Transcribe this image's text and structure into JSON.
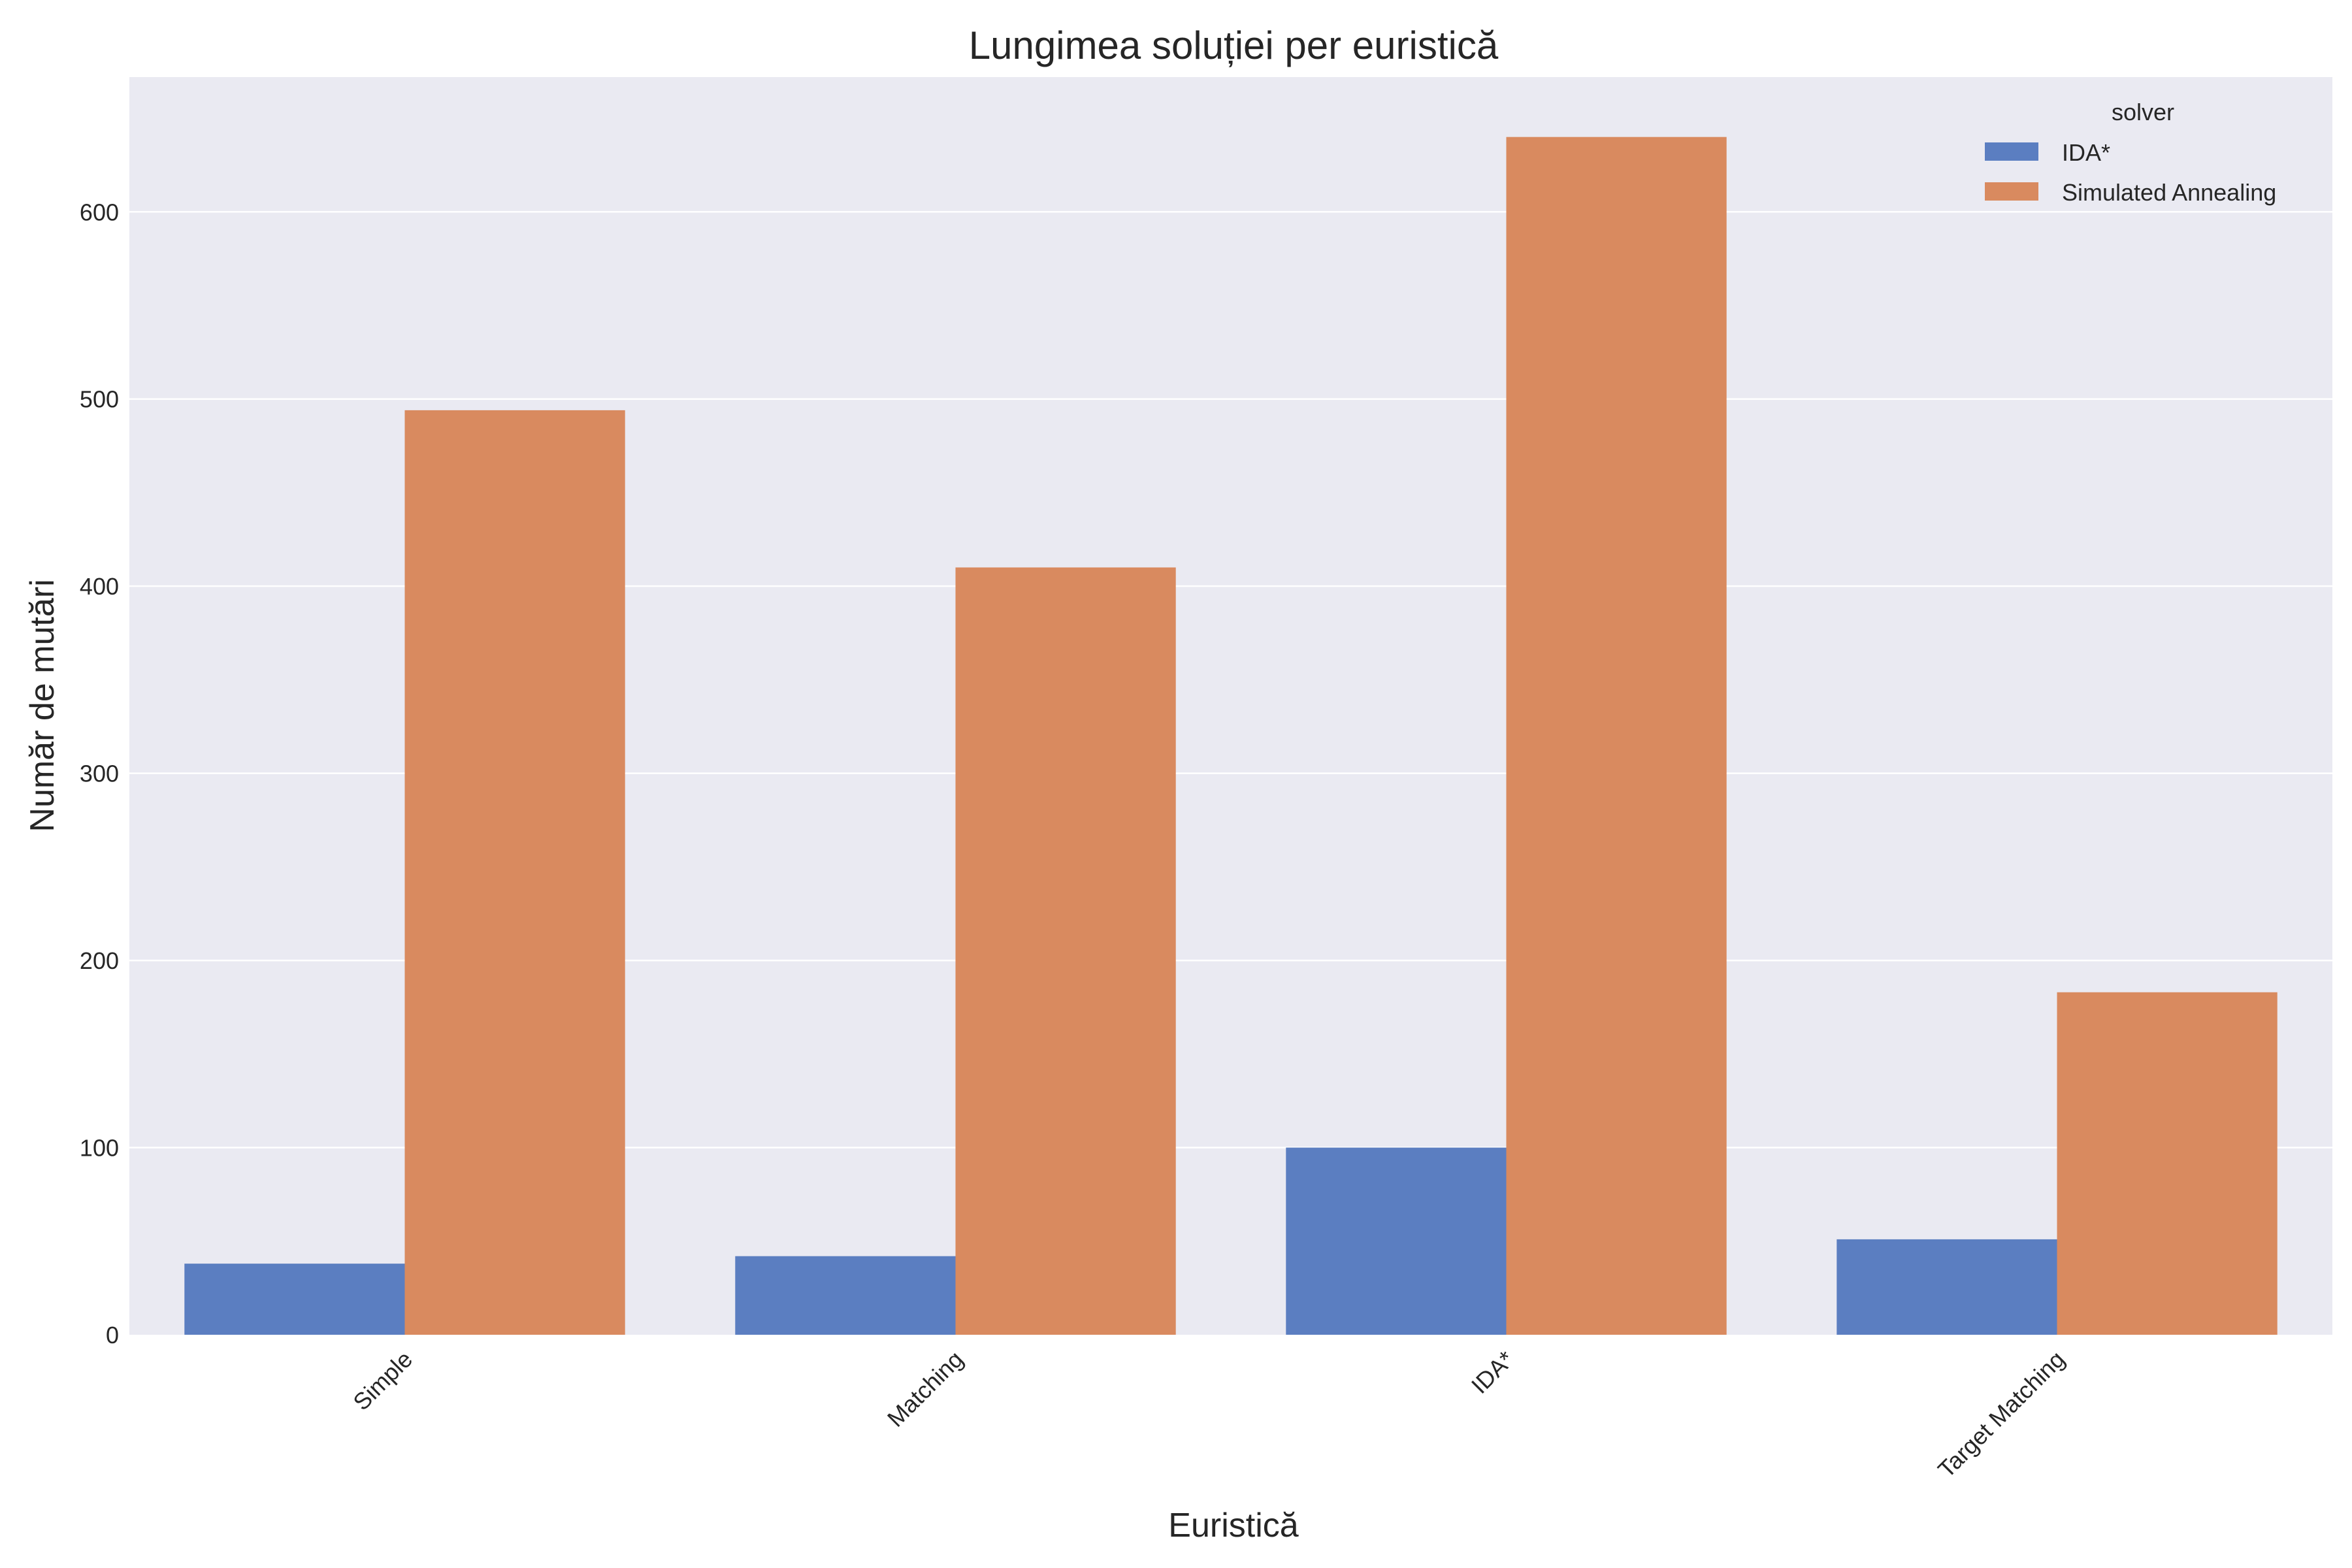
{
  "chart_data": {
    "type": "bar",
    "title": "Lungimea soluției per euristică",
    "xlabel": "Euristică",
    "ylabel": "Număr de mutări",
    "categories": [
      "Simple",
      "Matching",
      "IDA*",
      "Target Matching"
    ],
    "series": [
      {
        "name": "IDA*",
        "color": "#5b7ec1",
        "values": [
          38,
          42,
          100,
          51
        ]
      },
      {
        "name": "Simulated Annealing",
        "color": "#d98a5f",
        "values": [
          494,
          410,
          640,
          183
        ]
      }
    ],
    "ylim": [
      0,
      672
    ],
    "yticks": [
      "0",
      "100",
      "200",
      "300",
      "400",
      "500",
      "600"
    ],
    "grid": "horizontal",
    "legend": {
      "title": "solver",
      "placement": "top-right"
    },
    "plot_background": "#eaeaf2"
  }
}
